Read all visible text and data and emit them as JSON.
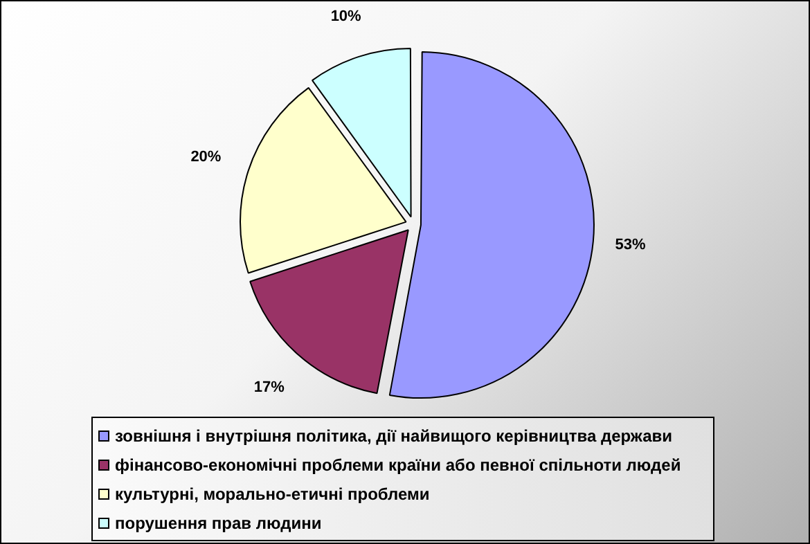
{
  "chart_data": {
    "type": "pie",
    "categories": [
      "зовнішня і внутрішня політика, дії найвищого керівництва держави",
      "фінансово-економічні проблеми країни або певної спільноти людей",
      "культурні, морально-етичні проблеми",
      "порушення прав людини"
    ],
    "values": [
      53,
      17,
      20,
      10
    ],
    "colors": [
      "#9999ff",
      "#993366",
      "#ffffcc",
      "#ccffff"
    ],
    "value_labels": [
      "53%",
      "17%",
      "20%",
      "10%"
    ],
    "legend": "bottom"
  }
}
